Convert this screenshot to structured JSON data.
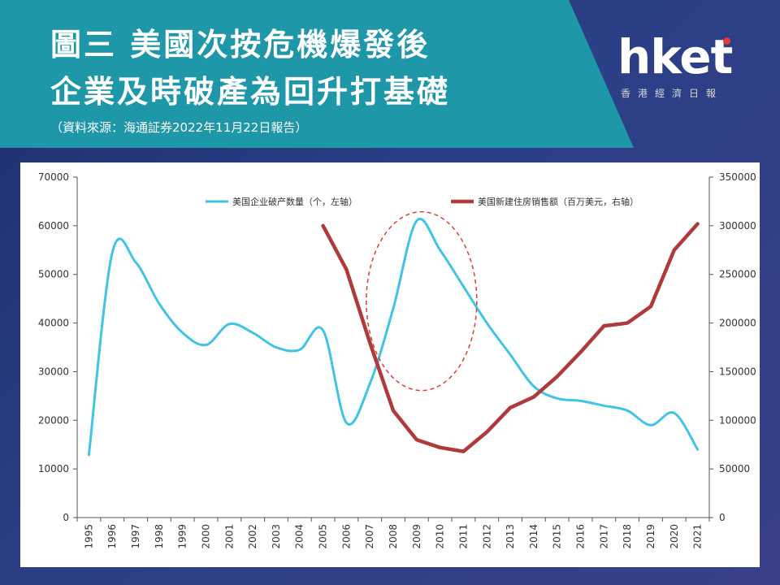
{
  "header": {
    "title_line1": "圖三 美國次按危機爆發後",
    "title_line2": "企業及時破產為回升打基礎",
    "source": "（資料來源：海通証券2022年11月22日報告）"
  },
  "logo": {
    "text": "hket",
    "subtitle": "香港經濟日報"
  },
  "chart_data": {
    "type": "line",
    "categories": [
      "1995",
      "1996",
      "1997",
      "1998",
      "1999",
      "2000",
      "2001",
      "2002",
      "2003",
      "2004",
      "2005",
      "2006",
      "2007",
      "2008",
      "2009",
      "2010",
      "2011",
      "2012",
      "2013",
      "2014",
      "2015",
      "2016",
      "2017",
      "2018",
      "2019",
      "2020",
      "2021"
    ],
    "y_left": {
      "ticks": [
        "0",
        "10000",
        "20000",
        "30000",
        "40000",
        "50000",
        "60000",
        "70000"
      ],
      "min": 0,
      "max": 70000
    },
    "y_right": {
      "ticks": [
        "0",
        "50000",
        "100000",
        "150000",
        "200000",
        "250000",
        "300000",
        "350000"
      ],
      "min": 0,
      "max": 350000
    },
    "series": [
      {
        "name": "美国企业破产数量（个，左轴）",
        "axis": "left",
        "color": "#40c4e6",
        "values": [
          12900,
          54500,
          52500,
          44000,
          38000,
          35500,
          39800,
          38000,
          35000,
          34500,
          38500,
          19500,
          27500,
          43000,
          61000,
          55000,
          47500,
          40000,
          33500,
          27000,
          24500,
          24000,
          23000,
          22000,
          19000,
          21500,
          14000
        ]
      },
      {
        "name": "美国新建住房销售额（百万美元，右轴）",
        "axis": "right",
        "color": "#b03a3a",
        "values": [
          null,
          null,
          null,
          null,
          null,
          null,
          null,
          null,
          null,
          null,
          300000,
          255000,
          180000,
          110000,
          80000,
          72000,
          68000,
          88000,
          113000,
          124000,
          145000,
          170000,
          197000,
          200000,
          217000,
          275000,
          302000
        ]
      }
    ],
    "annotation": {
      "shape": "dashed-ellipse",
      "color": "#e53935"
    }
  }
}
